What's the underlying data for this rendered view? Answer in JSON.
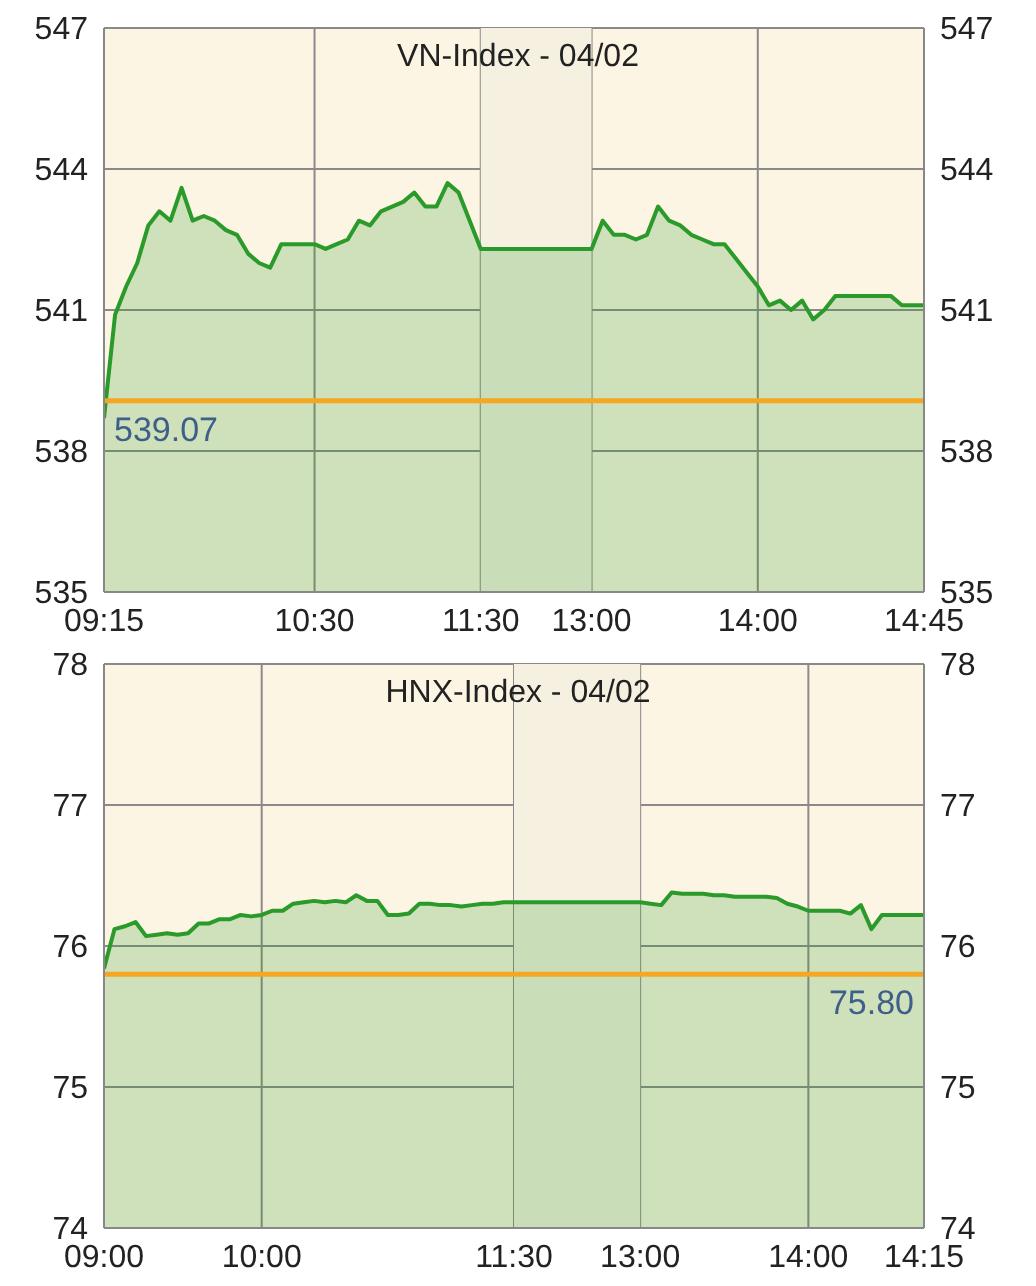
{
  "chart_data": [
    {
      "type": "area",
      "title": "VN-Index - 04/02",
      "categories": [
        "09:15",
        null,
        null,
        null,
        null,
        null,
        null,
        null,
        null,
        null,
        null,
        null,
        null,
        null,
        null,
        null,
        null,
        null,
        null,
        "10:30",
        null,
        null,
        null,
        null,
        null,
        null,
        null,
        null,
        null,
        null,
        null,
        null,
        null,
        null,
        "11:30",
        null,
        null,
        null,
        null,
        null,
        null,
        null,
        null,
        null,
        "13:00",
        null,
        null,
        null,
        null,
        null,
        null,
        null,
        null,
        null,
        null,
        null,
        null,
        null,
        null,
        "14:00",
        null,
        null,
        null,
        null,
        null,
        null,
        null,
        null,
        null,
        null,
        null,
        null,
        null,
        null,
        "14:45"
      ],
      "series": [
        {
          "color": "#2a9a2a",
          "values": [
            538.7,
            540.9,
            541.5,
            542.0,
            542.8,
            543.1,
            542.9,
            543.6,
            542.9,
            543.0,
            542.9,
            542.7,
            542.6,
            542.2,
            542.0,
            541.9,
            542.4,
            542.4,
            542.4,
            542.4,
            542.3,
            542.4,
            542.5,
            542.9,
            542.8,
            543.1,
            543.2,
            543.3,
            543.5,
            543.2,
            543.2,
            543.7,
            543.5,
            542.9,
            542.3,
            542.3,
            542.3,
            542.3,
            542.3,
            542.3,
            542.3,
            542.3,
            542.3,
            542.3,
            542.3,
            542.9,
            542.6,
            542.6,
            542.5,
            542.6,
            543.2,
            542.9,
            542.8,
            542.6,
            542.5,
            542.4,
            542.4,
            542.1,
            541.8,
            541.5,
            541.1,
            541.2,
            541.0,
            541.2,
            540.8,
            541.0,
            541.3,
            541.3,
            541.3,
            541.3,
            541.3,
            541.3,
            541.1,
            541.1,
            541.1
          ]
        }
      ],
      "ylim": [
        535,
        547
      ],
      "yticks": [
        535,
        538,
        541,
        544,
        547
      ],
      "y2lim": [
        535,
        547
      ],
      "y2ticks": [
        535,
        538,
        541,
        544,
        547
      ],
      "ref_lines": [
        {
          "axis": "y",
          "value": 539.07,
          "label": "539.07",
          "color": "#f5a623"
        }
      ],
      "bands": [
        {
          "axis": "x",
          "from": "11:30",
          "to": "13:00",
          "color": "#f6f0e0"
        }
      ],
      "grid": true,
      "marker": "none"
    },
    {
      "type": "area",
      "title": "HNX-Index - 04/02",
      "categories": [
        "09:00",
        null,
        null,
        null,
        null,
        null,
        null,
        null,
        null,
        null,
        null,
        null,
        null,
        null,
        null,
        "10:00",
        null,
        null,
        null,
        null,
        null,
        null,
        null,
        null,
        null,
        null,
        null,
        null,
        null,
        null,
        null,
        null,
        null,
        null,
        null,
        null,
        null,
        null,
        null,
        "11:30",
        null,
        null,
        null,
        null,
        null,
        null,
        null,
        null,
        null,
        null,
        null,
        "13:00",
        null,
        null,
        null,
        null,
        null,
        null,
        null,
        null,
        null,
        null,
        null,
        null,
        null,
        null,
        null,
        "14:00",
        null,
        null,
        null,
        null,
        null,
        null,
        null,
        null,
        null,
        null,
        "14:15"
      ],
      "series": [
        {
          "color": "#2a9a2a",
          "values": [
            75.84,
            76.12,
            76.14,
            76.17,
            76.07,
            76.08,
            76.09,
            76.08,
            76.09,
            76.16,
            76.16,
            76.19,
            76.19,
            76.22,
            76.21,
            76.22,
            76.25,
            76.25,
            76.3,
            76.31,
            76.32,
            76.31,
            76.32,
            76.31,
            76.36,
            76.32,
            76.32,
            76.22,
            76.22,
            76.23,
            76.3,
            76.3,
            76.29,
            76.29,
            76.28,
            76.29,
            76.3,
            76.3,
            76.31,
            76.31,
            76.31,
            76.31,
            76.31,
            76.31,
            76.31,
            76.31,
            76.31,
            76.31,
            76.31,
            76.31,
            76.31,
            76.31,
            76.3,
            76.29,
            76.38,
            76.37,
            76.37,
            76.37,
            76.36,
            76.36,
            76.35,
            76.35,
            76.35,
            76.35,
            76.34,
            76.3,
            76.28,
            76.25,
            76.25,
            76.25,
            76.25,
            76.23,
            76.29,
            76.12,
            76.22,
            76.22,
            76.22,
            76.22,
            76.22
          ]
        }
      ],
      "ylim": [
        74,
        78
      ],
      "yticks": [
        74,
        75,
        76,
        77,
        78
      ],
      "y2lim": [
        74,
        78
      ],
      "y2ticks": [
        74,
        75,
        76,
        77,
        78
      ],
      "ref_lines": [
        {
          "axis": "y",
          "value": 75.8,
          "label": "75.80",
          "color": "#f5a623"
        }
      ],
      "bands": [
        {
          "axis": "x",
          "from": "11:30",
          "to": "13:00",
          "color": "#f6f0e0"
        }
      ],
      "grid": true,
      "marker": "none"
    }
  ]
}
